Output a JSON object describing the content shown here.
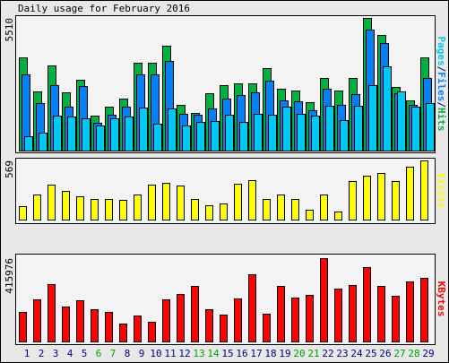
{
  "chart_data": [
    {
      "type": "bar",
      "title": "Daily usage for February 2016",
      "categories": [
        "1",
        "2",
        "3",
        "4",
        "5",
        "6",
        "7",
        "8",
        "9",
        "10",
        "11",
        "12",
        "13",
        "14",
        "15",
        "16",
        "17",
        "18",
        "19",
        "20",
        "21",
        "22",
        "23",
        "24",
        "25",
        "26",
        "27",
        "28",
        "29"
      ],
      "legend_separator": "/",
      "series": [
        {
          "name": "Hits",
          "color": "#00b040",
          "values": [
            3872,
            2457,
            3537,
            2420,
            2941,
            1452,
            1824,
            2159,
            3649,
            3649,
            4356,
            1899,
            1564,
            2383,
            2718,
            2792,
            2792,
            3425,
            2569,
            2494,
            2010,
            3016,
            2494,
            3016,
            5510,
            4803,
            2643,
            2085,
            3872
          ]
        },
        {
          "name": "Files",
          "color": "#0080ff",
          "values": [
            3165,
            1973,
            2718,
            1824,
            2681,
            1154,
            1489,
            1824,
            3165,
            3165,
            3723,
            1526,
            1489,
            1750,
            2159,
            2308,
            2420,
            2904,
            2085,
            2048,
            1675,
            2569,
            1899,
            2346,
            5026,
            4468,
            2383,
            1899,
            3016
          ]
        },
        {
          "name": "Pages",
          "color": "#00c8f0",
          "values": [
            596,
            745,
            1452,
            1415,
            1340,
            1042,
            1340,
            1415,
            1787,
            1117,
            1750,
            1042,
            1191,
            1229,
            1489,
            1191,
            1526,
            1489,
            1824,
            1526,
            1452,
            1861,
            1266,
            1861,
            2718,
            3500,
            2457,
            1824,
            1973
          ]
        }
      ],
      "ylim": [
        0,
        5510
      ],
      "yticks": [
        5510
      ]
    },
    {
      "type": "bar",
      "series": [
        {
          "name": "Visits",
          "color": "#ffff00",
          "values": [
            129,
            241,
            336,
            276,
            224,
            198,
            198,
            190,
            241,
            336,
            353,
            328,
            198,
            138,
            155,
            345,
            379,
            198,
            241,
            198,
            95,
            241,
            78,
            371,
            422,
            448,
            371,
            509,
            569
          ]
        }
      ],
      "ylim": [
        0,
        569
      ],
      "yticks": [
        569
      ]
    },
    {
      "type": "bar",
      "series": [
        {
          "name": "KBytes",
          "color": "#ff0000",
          "values": [
            147604,
            210227,
            286263,
            174441,
            205754,
            161022,
            147604,
            89457,
            129713,
            98403,
            210227,
            237064,
            277317,
            161022,
            134186,
            214700,
            335465,
            138659,
            277317,
            219173,
            232591,
            415976,
            263898,
            281790,
            371248,
            277317,
            228118,
            299682,
            317573
          ]
        }
      ],
      "ylim": [
        0,
        415976
      ],
      "yticks": [
        415976
      ],
      "category_colors": [
        "#000080",
        "#000080",
        "#000080",
        "#000080",
        "#000080",
        "#00a000",
        "#00a000",
        "#000080",
        "#000080",
        "#000080",
        "#000080",
        "#000080",
        "#00a000",
        "#00a000",
        "#000080",
        "#000080",
        "#000080",
        "#000080",
        "#000080",
        "#00a000",
        "#00a000",
        "#000080",
        "#000080",
        "#000080",
        "#000080",
        "#000080",
        "#00a000",
        "#00a000",
        "#000080"
      ]
    }
  ]
}
